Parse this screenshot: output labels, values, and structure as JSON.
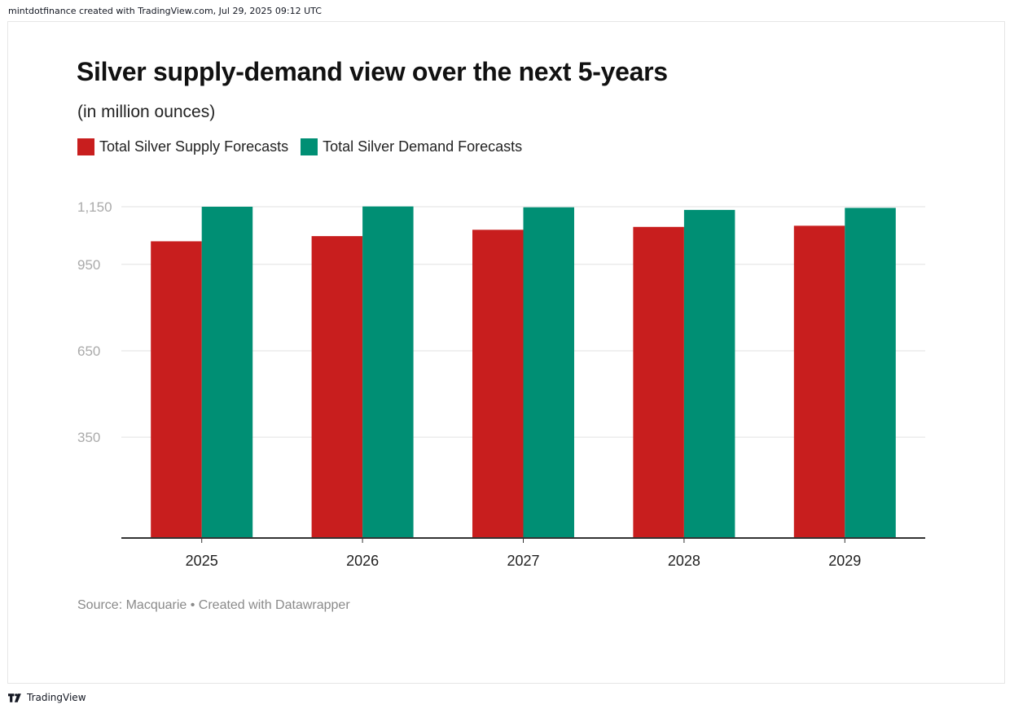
{
  "header": {
    "attribution": "mintdotfinance created with TradingView.com, Jul 29, 2025 09:12 UTC"
  },
  "footer": {
    "brand": "TradingView",
    "icon": "tradingview-logo-icon"
  },
  "source_note": "Source: Macquarie • Created with Datawrapper",
  "colors": {
    "supply": "#c81e1e",
    "demand": "#008f74",
    "grid": "#e2e2e2",
    "axis": "#333333",
    "tick_label": "#aaaaaa"
  },
  "chart_data": {
    "type": "bar",
    "title": "Silver supply-demand view over the next 5-years",
    "subtitle": "(in million ounces)",
    "xlabel": "",
    "ylabel": "",
    "categories": [
      "2025",
      "2026",
      "2027",
      "2028",
      "2029"
    ],
    "series": [
      {
        "name": "Total Silver Supply Forecasts",
        "values": [
          1030,
          1048,
          1070,
          1080,
          1084
        ]
      },
      {
        "name": "Total Silver Demand Forecasts",
        "values": [
          1150,
          1151,
          1148,
          1139,
          1146
        ]
      }
    ],
    "yticks": [
      350,
      650,
      950,
      1150
    ],
    "ytick_labels": [
      "350",
      "650",
      "950",
      "1,150"
    ],
    "ylim": [
      0,
      1150
    ],
    "grid": true,
    "legend": "top-left"
  }
}
